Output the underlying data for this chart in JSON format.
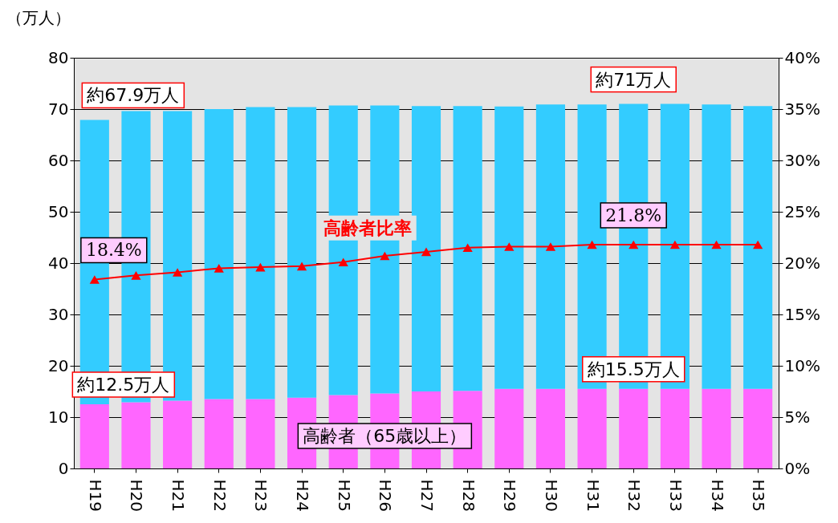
{
  "chart_data": {
    "type": "bar",
    "stacked": true,
    "ylabel": "（万人）",
    "categories": [
      "H19",
      "H20",
      "H21",
      "H22",
      "H23",
      "H24",
      "H25",
      "H26",
      "H27",
      "H28",
      "H29",
      "H30",
      "H31",
      "H32",
      "H33",
      "H34",
      "H35"
    ],
    "series": [
      {
        "name": "高齢者（65歳以上）",
        "color": "#ff66ff",
        "values": [
          12.5,
          12.9,
          13.2,
          13.5,
          13.5,
          13.8,
          14.3,
          14.6,
          15.0,
          15.1,
          15.5,
          15.5,
          15.5,
          15.5,
          15.5,
          15.5,
          15.5
        ],
        "value_labels": [
          "約12.5万人",
          null,
          null,
          null,
          null,
          null,
          null,
          null,
          null,
          null,
          null,
          null,
          null,
          "約15.5万人",
          null,
          null,
          null
        ]
      },
      {
        "color": "#33ccff",
        "values": [
          55.4,
          56.7,
          56.4,
          56.5,
          56.9,
          56.6,
          56.4,
          56.1,
          55.6,
          55.5,
          55.0,
          55.4,
          55.4,
          55.5,
          55.5,
          55.4,
          55.1
        ]
      },
      {
        "name": "高齢者比率",
        "type": "line",
        "axis": "y2",
        "color": "#ff0000",
        "values": [
          18.4,
          18.8,
          19.1,
          19.5,
          19.6,
          19.7,
          20.1,
          20.7,
          21.1,
          21.5,
          21.6,
          21.6,
          21.8,
          21.8,
          21.8,
          21.8,
          21.8
        ],
        "value_labels": [
          "18.4%",
          null,
          null,
          null,
          null,
          null,
          null,
          null,
          null,
          null,
          null,
          null,
          null,
          "21.8%",
          null,
          null,
          null
        ]
      }
    ],
    "totals": [
      "約67.9万人",
      null,
      null,
      null,
      null,
      null,
      null,
      null,
      null,
      null,
      null,
      null,
      null,
      "約71万人",
      null,
      null,
      null
    ],
    "ylim": [
      0,
      80
    ],
    "yticks": [
      0,
      10,
      20,
      30,
      40,
      50,
      60,
      70,
      80
    ],
    "y2lim": [
      0,
      40
    ],
    "y2ticks": [
      {
        "value": 0,
        "label": "0%"
      },
      {
        "value": 5,
        "label": "5%"
      },
      {
        "value": 10,
        "label": "10%"
      },
      {
        "value": 15,
        "label": "15%"
      },
      {
        "value": 20,
        "label": "20%"
      },
      {
        "value": 25,
        "label": "25%"
      },
      {
        "value": 30,
        "label": "30%"
      },
      {
        "value": 35,
        "label": "35%"
      },
      {
        "value": 40,
        "label": "40%"
      }
    ],
    "grid": "y",
    "legend": false,
    "marker": "triangle",
    "line_style": "solid"
  }
}
